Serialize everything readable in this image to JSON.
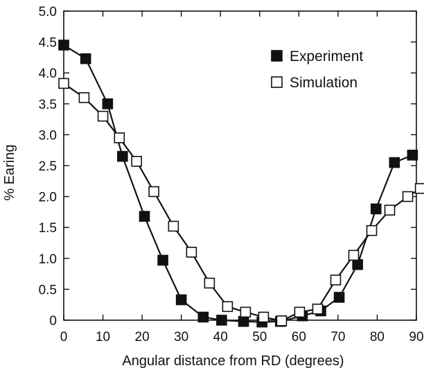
{
  "chart_data": {
    "type": "line",
    "title": "",
    "xlabel": "Angular distance from RD (degrees)",
    "ylabel": "% Earing",
    "xlim": [
      0,
      90
    ],
    "ylim": [
      0,
      5.0
    ],
    "x_ticks": [
      "0",
      "10",
      "20",
      "30",
      "40",
      "50",
      "60",
      "70",
      "80",
      "90"
    ],
    "y_ticks": [
      "0",
      "0.5",
      "1.0",
      "1.5",
      "2.0",
      "2.5",
      "3.0",
      "3.5",
      "4.0",
      "4.5",
      "5.0"
    ],
    "grid": false,
    "legend_position": "top-right",
    "series": [
      {
        "name": "Experiment",
        "marker": "filled-square",
        "color": "#111111",
        "points": [
          [
            0,
            4.45
          ],
          [
            5.6,
            4.23
          ],
          [
            11.2,
            3.5
          ],
          [
            15,
            2.65
          ],
          [
            20.6,
            1.68
          ],
          [
            25.3,
            0.97
          ],
          [
            30,
            0.33
          ],
          [
            35.6,
            0.05
          ],
          [
            40.3,
            0.0
          ],
          [
            45.9,
            -0.02
          ],
          [
            50.6,
            -0.03
          ],
          [
            55.3,
            -0.02
          ],
          [
            60.9,
            0.07
          ],
          [
            65.6,
            0.15
          ],
          [
            70.3,
            0.37
          ],
          [
            75,
            0.9
          ],
          [
            79.7,
            1.8
          ],
          [
            84.4,
            2.55
          ],
          [
            89,
            2.67
          ]
        ]
      },
      {
        "name": "Simulation",
        "marker": "open-square",
        "color": "#111111",
        "points": [
          [
            0,
            3.83
          ],
          [
            5.2,
            3.6
          ],
          [
            10,
            3.3
          ],
          [
            14.2,
            2.95
          ],
          [
            18.6,
            2.57
          ],
          [
            23,
            2.08
          ],
          [
            28,
            1.52
          ],
          [
            32.6,
            1.1
          ],
          [
            37.2,
            0.6
          ],
          [
            41.8,
            0.22
          ],
          [
            46.4,
            0.13
          ],
          [
            51,
            0.05
          ],
          [
            55.6,
            -0.01
          ],
          [
            60.2,
            0.13
          ],
          [
            64.8,
            0.18
          ],
          [
            69.4,
            0.65
          ],
          [
            74,
            1.05
          ],
          [
            78.6,
            1.45
          ],
          [
            83.2,
            1.78
          ],
          [
            87.8,
            2.0
          ],
          [
            91,
            2.13
          ]
        ]
      }
    ]
  }
}
